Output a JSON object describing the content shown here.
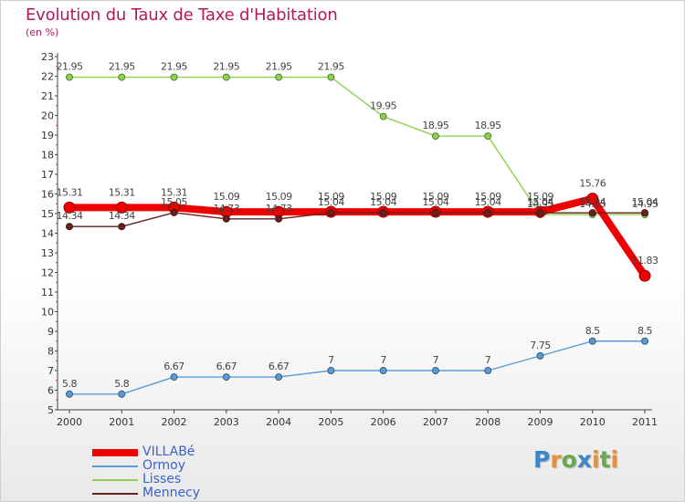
{
  "header": {
    "title": "Evolution du Taux de Taxe d'Habitation",
    "subtitle": "(en %)"
  },
  "chart_data": {
    "type": "line",
    "title": "Evolution du Taux de Taxe d'Habitation",
    "subtitle": "(en %)",
    "xlabel": "",
    "ylabel": "",
    "x": [
      "2000",
      "2001",
      "2002",
      "2003",
      "2004",
      "2005",
      "2006",
      "2007",
      "2008",
      "2009",
      "2010",
      "2011"
    ],
    "ylim": [
      5,
      23
    ],
    "yticks": [
      "5",
      "6",
      "7",
      "8",
      "9",
      "10",
      "11",
      "12",
      "13",
      "14",
      "15",
      "16",
      "17",
      "18",
      "19",
      "20",
      "21",
      "22",
      "23"
    ],
    "grid": false,
    "legend_position": "bottom-left",
    "series": [
      {
        "name": "VILLABé",
        "color": "#ee0000",
        "values": [
          15.31,
          15.31,
          15.31,
          15.09,
          15.09,
          15.09,
          15.09,
          15.09,
          15.09,
          15.09,
          15.76,
          11.83
        ],
        "labels": [
          "15.31",
          "15.31",
          "15.31",
          "15.09",
          "15.09",
          "15.09",
          "15.09",
          "15.09",
          "15.09",
          "15.09",
          "15.76",
          "11.83"
        ]
      },
      {
        "name": "Ormoy",
        "color": "#5b9bd5",
        "values": [
          5.8,
          5.8,
          6.67,
          6.67,
          6.67,
          7,
          7,
          7,
          7,
          7.75,
          8.5,
          8.5
        ],
        "labels": [
          "5.8",
          "5.8",
          "6.67",
          "6.67",
          "6.67",
          "7",
          "7",
          "7",
          "7",
          "7.75",
          "8.5",
          "8.5"
        ]
      },
      {
        "name": "Lisses",
        "color": "#8fd14f",
        "values": [
          21.95,
          21.95,
          21.95,
          21.95,
          21.95,
          21.95,
          19.95,
          18.95,
          18.95,
          14.95,
          14.95,
          14.95
        ],
        "labels": [
          "21.95",
          "21.95",
          "21.95",
          "21.95",
          "21.95",
          "21.95",
          "19.95",
          "18.95",
          "18.95",
          "14.95",
          "14.95",
          "14.95"
        ]
      },
      {
        "name": "Mennecy",
        "color": "#6b2020",
        "values": [
          14.34,
          14.34,
          15.05,
          14.73,
          14.73,
          15.04,
          15.04,
          15.04,
          15.04,
          15.04,
          15.04,
          15.04
        ],
        "labels": [
          "14.34",
          "14.34",
          "15.05",
          "14.73",
          "14.73",
          "15.04",
          "15.04",
          "15.04",
          "15.04",
          "15.04",
          "15.04",
          "15.04"
        ]
      }
    ]
  },
  "logo": {
    "text": "Proxiti",
    "letter_colors": [
      "#3d85c6",
      "#e69138",
      "#6aa84f",
      "#3d85c6",
      "#e69138",
      "#6aa84f",
      "#e69138"
    ]
  }
}
